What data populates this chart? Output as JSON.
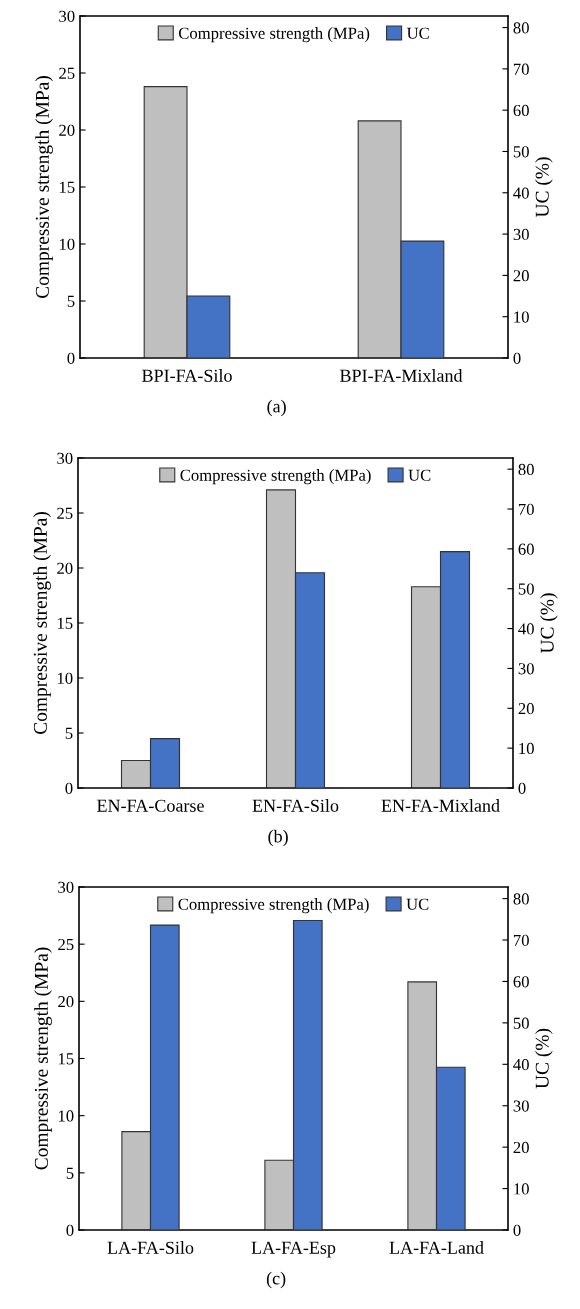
{
  "chart_data": [
    {
      "type": "bar",
      "categories": [
        "BPI-FA-Silo",
        "BPI-FA-Mixland"
      ],
      "ylabel": "Compressive strength (MPa)",
      "y2label": "UC (%)",
      "ylim": [
        0,
        30
      ],
      "yticks": [
        0,
        5,
        10,
        15,
        20,
        25,
        30
      ],
      "y2lim": [
        0,
        82.8
      ],
      "y2ticks": [
        0,
        10,
        20,
        30,
        40,
        50,
        60,
        70,
        80
      ],
      "legend": "top",
      "grid": false,
      "annotations": [
        "(a)"
      ],
      "series": [
        {
          "name": "Compressive strength (MPa)",
          "color": "#bfbfbf",
          "values": [
            23.8,
            20.8
          ]
        },
        {
          "name": "UC",
          "color": "#4472c4",
          "axis": "y2",
          "values": [
            15,
            28.3
          ]
        }
      ]
    },
    {
      "type": "bar",
      "categories": [
        "EN-FA-Coarse",
        "EN-FA-Silo",
        "EN-FA-Mixland"
      ],
      "ylabel": "Compressive strength (MPa)",
      "y2label": "UC (%)",
      "ylim": [
        0,
        30
      ],
      "yticks": [
        0,
        5,
        10,
        15,
        20,
        25,
        30
      ],
      "y2lim": [
        0,
        82.8
      ],
      "y2ticks": [
        0,
        10,
        20,
        30,
        40,
        50,
        60,
        70,
        80
      ],
      "legend": "top",
      "grid": false,
      "annotations": [
        "(b)"
      ],
      "series": [
        {
          "name": "Compressive strength (MPa)",
          "color": "#bfbfbf",
          "values": [
            2.5,
            27.1,
            18.3
          ]
        },
        {
          "name": "UC",
          "color": "#4472c4",
          "axis": "y2",
          "values": [
            12.4,
            54.0,
            59.3
          ]
        }
      ]
    },
    {
      "type": "bar",
      "categories": [
        "LA-FA-Silo",
        "LA-FA-Esp",
        "LA-FA-Land"
      ],
      "ylabel": "Compressive strength (MPa)",
      "y2label": "UC (%)",
      "ylim": [
        0,
        30
      ],
      "yticks": [
        0,
        5,
        10,
        15,
        20,
        25,
        30
      ],
      "y2lim": [
        0,
        82.8
      ],
      "y2ticks": [
        0,
        10,
        20,
        30,
        40,
        50,
        60,
        70,
        80
      ],
      "legend": "top",
      "grid": false,
      "annotations": [
        "(c)"
      ],
      "series": [
        {
          "name": "Compressive strength (MPa)",
          "color": "#bfbfbf",
          "values": [
            8.6,
            6.1,
            21.7
          ]
        },
        {
          "name": "UC",
          "color": "#4472c4",
          "axis": "y2",
          "values": [
            73.6,
            74.7,
            39.3
          ]
        }
      ]
    }
  ]
}
